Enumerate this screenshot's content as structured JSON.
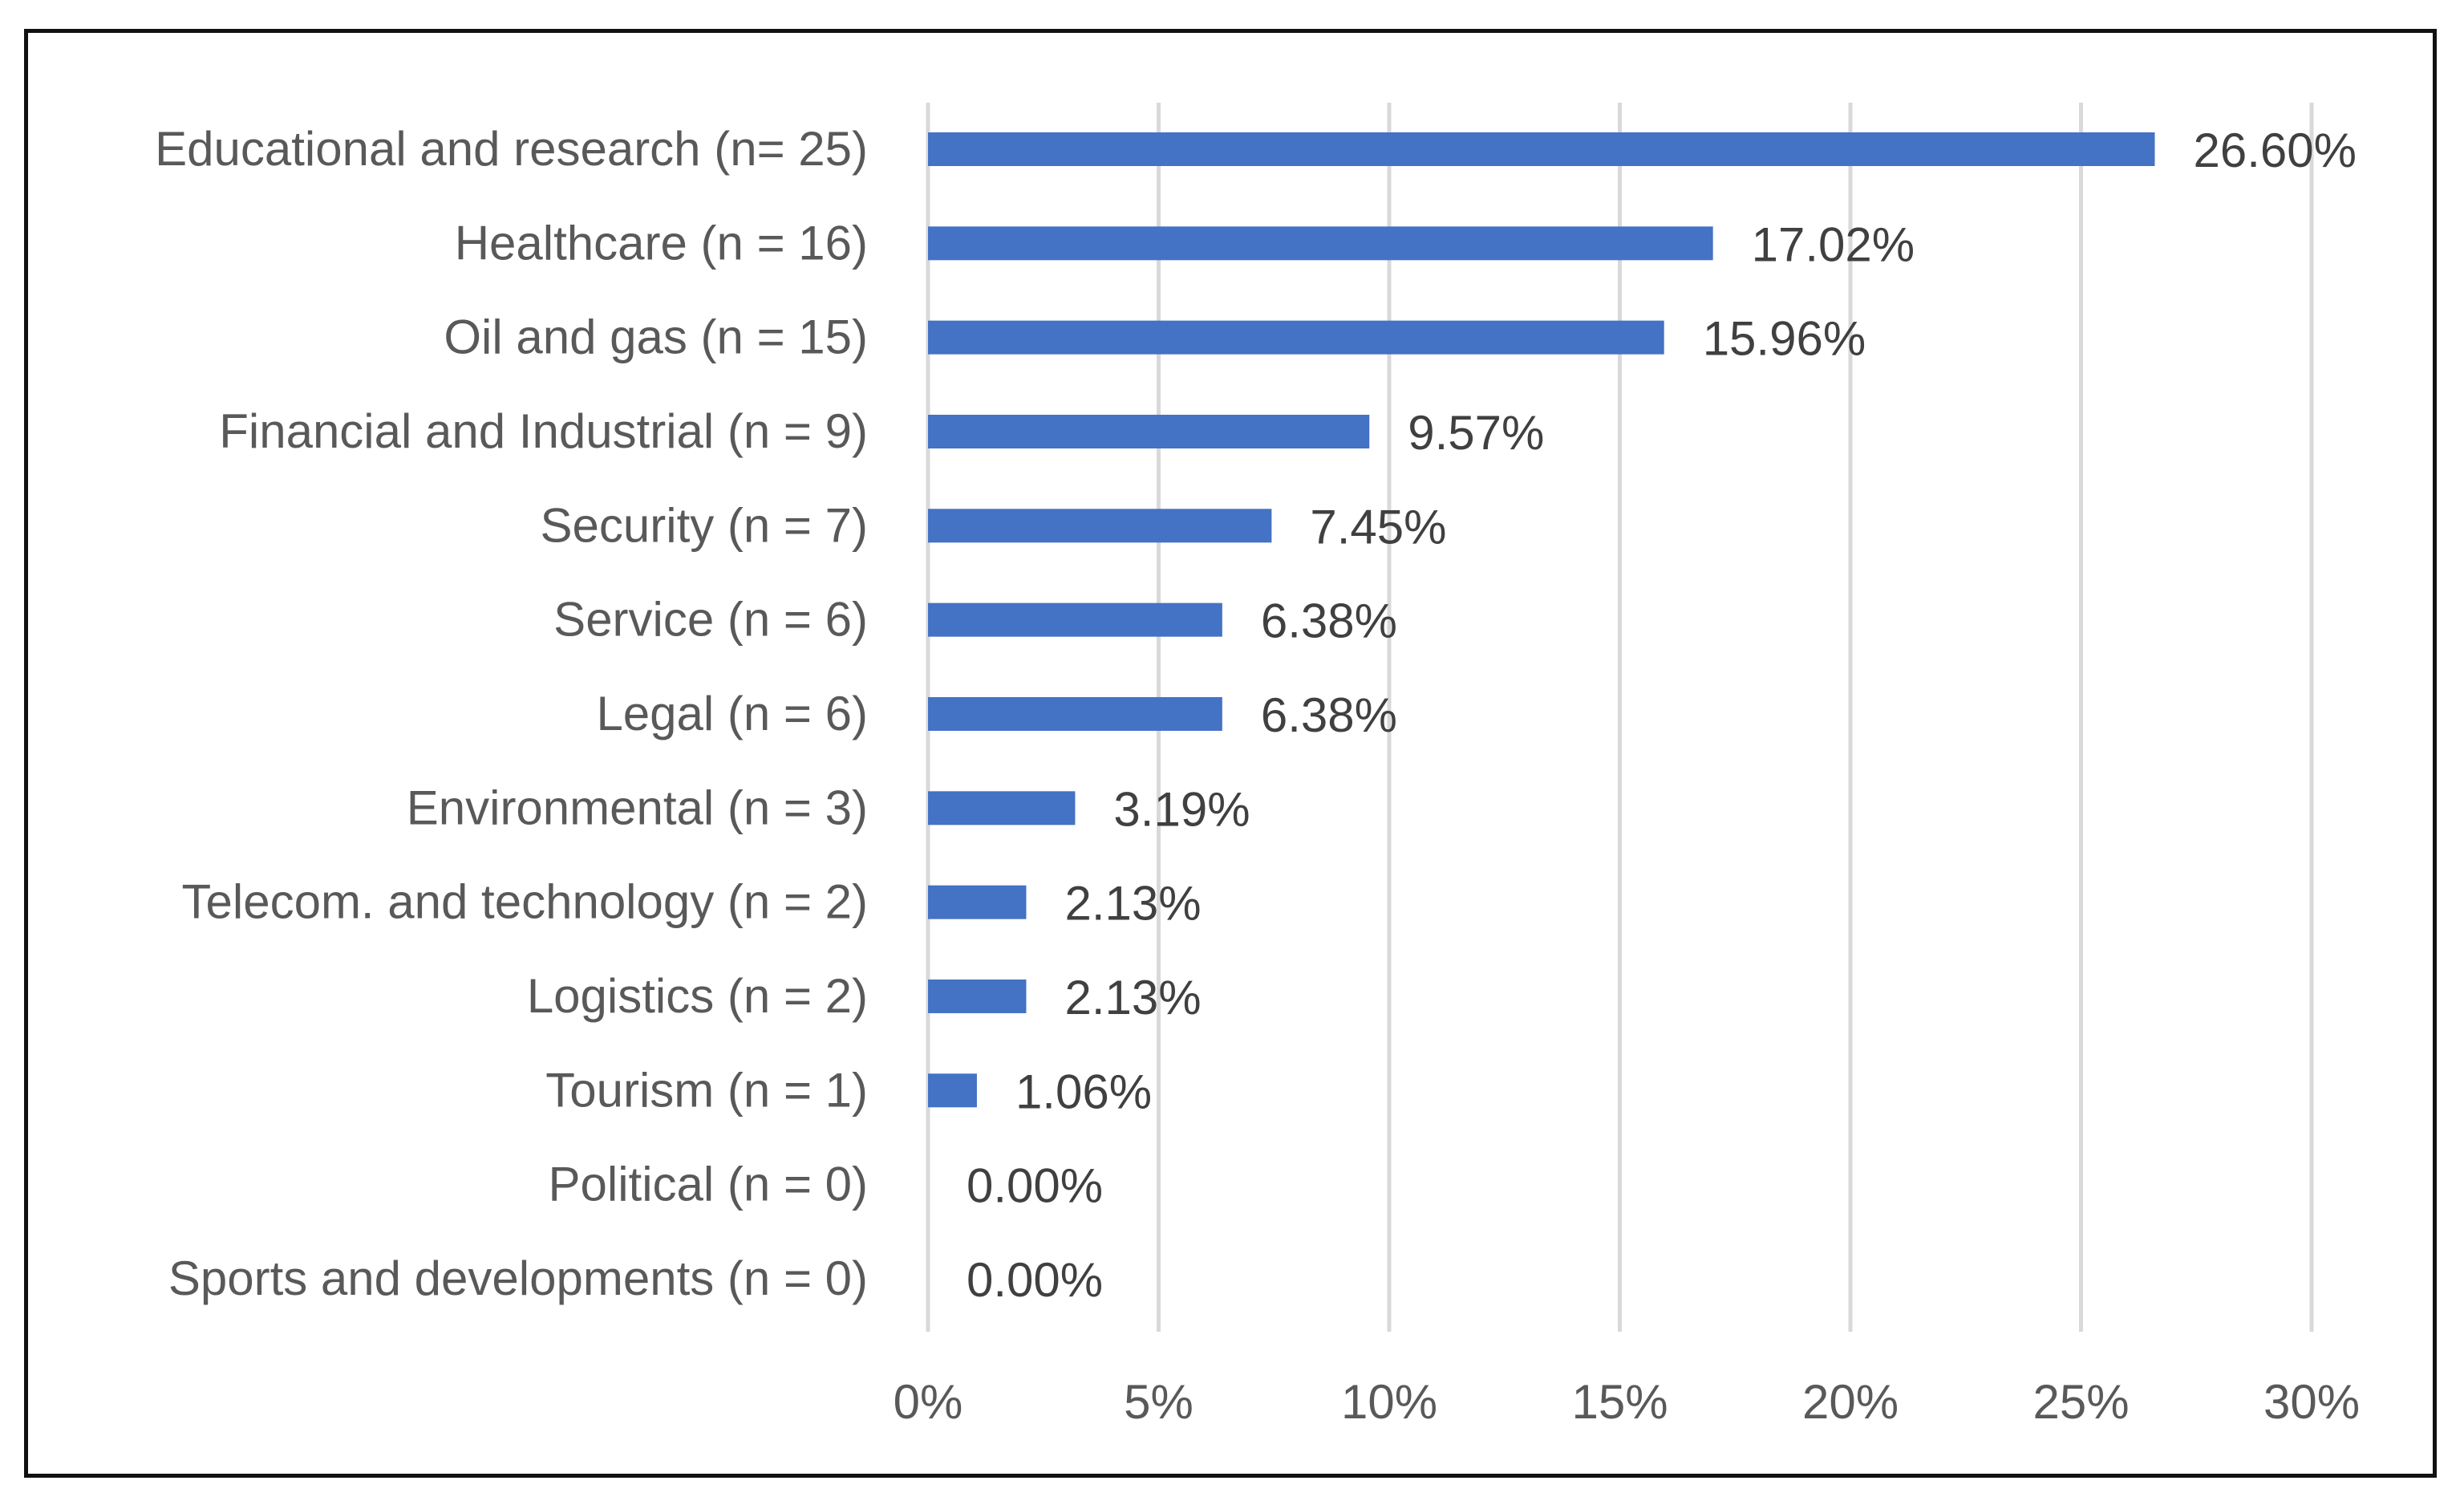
{
  "chart_data": {
    "type": "bar",
    "orientation": "horizontal",
    "title": "",
    "xlabel": "",
    "ylabel": "",
    "xlim": [
      0,
      30
    ],
    "categories": [
      "Educational and research (n= 25)",
      "Healthcare (n = 16)",
      "Oil and gas (n = 15)",
      "Financial and Industrial (n = 9)",
      "Security (n = 7)",
      "Service (n = 6)",
      "Legal (n = 6)",
      "Environmental (n = 3)",
      "Telecom. and technology (n = 2)",
      "Logistics (n = 2)",
      "Tourism (n = 1)",
      "Political (n = 0)",
      "Sports and developments (n = 0)"
    ],
    "values": [
      26.6,
      17.02,
      15.96,
      9.57,
      7.45,
      6.38,
      6.38,
      3.19,
      2.13,
      2.13,
      1.06,
      0.0,
      0.0
    ],
    "data_labels": [
      "26.60%",
      "17.02%",
      "15.96%",
      "9.57%",
      "7.45%",
      "6.38%",
      "6.38%",
      "3.19%",
      "2.13%",
      "2.13%",
      "1.06%",
      "0.00%",
      "0.00%"
    ],
    "ticks": [
      0,
      5,
      10,
      15,
      20,
      25,
      30
    ],
    "tick_labels": [
      "0%",
      "5%",
      "10%",
      "15%",
      "20%",
      "25%",
      "30%"
    ],
    "grid": true,
    "legend": "none",
    "bar_color": "#4472C4",
    "grid_color": "#D9D9D9",
    "text_color": "#595959",
    "label_color": "#404040"
  }
}
